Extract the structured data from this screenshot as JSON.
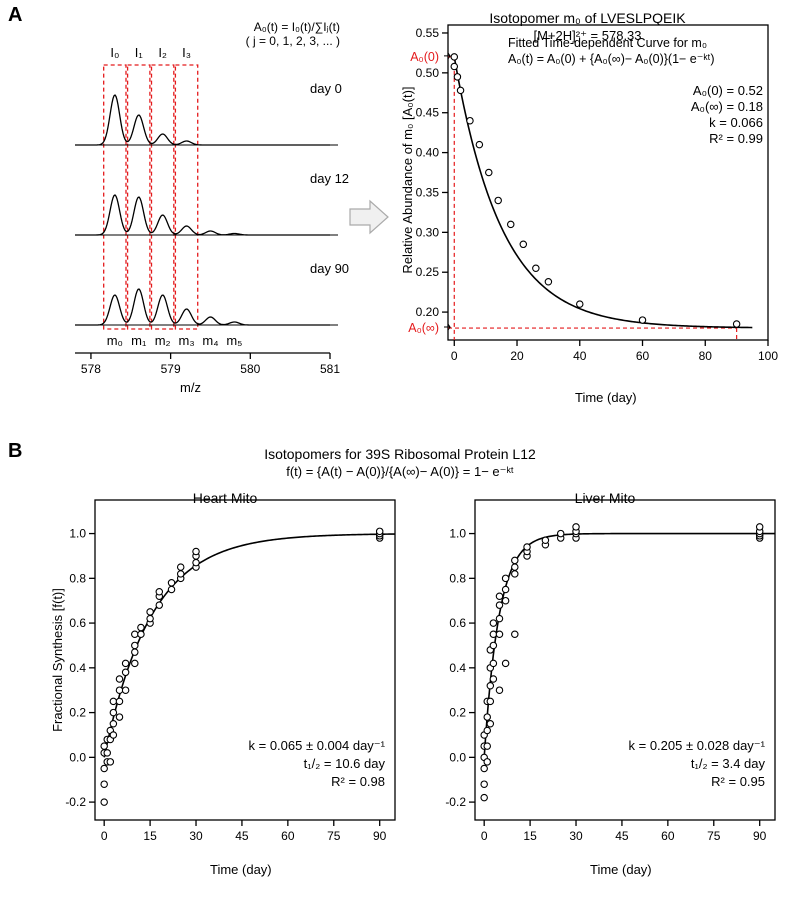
{
  "panelA": {
    "label": "A",
    "spectra": {
      "formula": "A₀(t) = I₀(t)/∑Iⱼ(t)",
      "formula_sub": "( j = 0, 1, 2, 3, ... )",
      "isotope_labels": [
        "I₀",
        "I₁",
        "I₂",
        "I₃"
      ],
      "day_labels": [
        "day 0",
        "day 12",
        "day 90"
      ],
      "m_labels": [
        "m₀",
        "m₁",
        "m₂",
        "m₃",
        "m₄",
        "m₅"
      ],
      "mz_values": [
        578.3,
        578.6,
        578.9,
        579.2,
        579.5,
        579.8
      ],
      "peak_heights": [
        [
          50,
          30,
          11,
          4,
          0,
          0
        ],
        [
          40,
          38,
          20,
          9,
          4,
          1.5
        ],
        [
          30,
          36,
          30,
          16,
          8,
          3
        ]
      ],
      "x_ticks": [
        578,
        579,
        580,
        581
      ],
      "x_axis_label": "m/z",
      "box_color": "#e41a1c",
      "stroke_color": "#000000",
      "x_lim": [
        577.8,
        581.0
      ]
    },
    "decay": {
      "title1": "Isotopomer m₀ of LVESLPQEIK",
      "title2": "[M+2H]²⁺ = 578.33",
      "fitted_line1": "Fitted Time-dependent Curve for m₀",
      "fitted_line2": "A₀(t) = A₀(0) + {A₀(∞)− A₀(0)}(1− e⁻ᵏᵗ)",
      "params": {
        "A0": "A₀(0) = 0.52",
        "Ainf": "A₀(∞) = 0.18",
        "k": "k = 0.066",
        "R2": "R² = 0.99"
      },
      "y_label": "Relative Abundance of m₀ [A₀(t)]",
      "x_label": "Time (day)",
      "x_ticks": [
        0,
        20,
        40,
        60,
        80,
        100
      ],
      "y_ticks": [
        0.2,
        0.25,
        0.3,
        0.35,
        0.4,
        0.45,
        0.5,
        0.55
      ],
      "x_lim": [
        -2,
        100
      ],
      "y_lim": [
        0.165,
        0.56
      ],
      "data_points": [
        [
          0,
          0.52
        ],
        [
          0,
          0.508
        ],
        [
          1,
          0.495
        ],
        [
          2,
          0.478
        ],
        [
          5,
          0.44
        ],
        [
          8,
          0.41
        ],
        [
          11,
          0.375
        ],
        [
          14,
          0.34
        ],
        [
          18,
          0.31
        ],
        [
          22,
          0.285
        ],
        [
          26,
          0.255
        ],
        [
          30,
          0.238
        ],
        [
          40,
          0.21
        ],
        [
          60,
          0.19
        ],
        [
          90,
          0.185
        ]
      ],
      "curve": {
        "A0": 0.52,
        "Ainf": 0.18,
        "k": 0.066
      },
      "annotation_A0": "A₀(0)",
      "annotation_Ainf": "A₀(∞)",
      "marker_color": "#000000",
      "marker_fill": "#ffffff",
      "dash_color": "#e41a1c"
    }
  },
  "panelB": {
    "label": "B",
    "title1": "Isotopomers for 39S Ribosomal Protein L12",
    "title2": "f(t) = {A(t) − A(0)}/{A(∞)− A(0)} = 1− e⁻ᵏᵗ",
    "y_label": "Fractional Synthesis [f(t)]",
    "x_label": "Time (day)",
    "x_ticks": [
      0,
      15,
      30,
      45,
      60,
      75,
      90
    ],
    "y_ticks": [
      -0.2,
      0.0,
      0.2,
      0.4,
      0.6,
      0.8,
      1.0
    ],
    "x_lim": [
      -3,
      95
    ],
    "y_lim": [
      -0.28,
      1.15
    ],
    "heart": {
      "title": "Heart Mito",
      "params": [
        "k = 0.065 ± 0.004 day⁻¹",
        "t₁/₂ = 10.6 day",
        "R² = 0.98"
      ],
      "curve_k": 0.065,
      "points": [
        [
          0,
          -0.2
        ],
        [
          0,
          -0.12
        ],
        [
          0,
          -0.05
        ],
        [
          0,
          0.02
        ],
        [
          0,
          0.05
        ],
        [
          1,
          0.02
        ],
        [
          1,
          -0.02
        ],
        [
          1,
          0.08
        ],
        [
          2,
          -0.02
        ],
        [
          2,
          0.08
        ],
        [
          2,
          0.12
        ],
        [
          3,
          0.1
        ],
        [
          3,
          0.15
        ],
        [
          3,
          0.2
        ],
        [
          3,
          0.25
        ],
        [
          5,
          0.18
        ],
        [
          5,
          0.25
        ],
        [
          5,
          0.3
        ],
        [
          5,
          0.35
        ],
        [
          7,
          0.3
        ],
        [
          7,
          0.38
        ],
        [
          7,
          0.42
        ],
        [
          10,
          0.42
        ],
        [
          10,
          0.47
        ],
        [
          10,
          0.5
        ],
        [
          10,
          0.55
        ],
        [
          12,
          0.55
        ],
        [
          12,
          0.58
        ],
        [
          15,
          0.6
        ],
        [
          15,
          0.62
        ],
        [
          15,
          0.65
        ],
        [
          18,
          0.68
        ],
        [
          18,
          0.72
        ],
        [
          18,
          0.74
        ],
        [
          22,
          0.75
        ],
        [
          22,
          0.78
        ],
        [
          25,
          0.8
        ],
        [
          25,
          0.82
        ],
        [
          25,
          0.85
        ],
        [
          30,
          0.85
        ],
        [
          30,
          0.87
        ],
        [
          30,
          0.9
        ],
        [
          30,
          0.92
        ],
        [
          90,
          0.98
        ],
        [
          90,
          0.99
        ],
        [
          90,
          1.0
        ],
        [
          90,
          1.01
        ]
      ]
    },
    "liver": {
      "title": "Liver Mito",
      "params": [
        "k = 0.205 ± 0.028 day⁻¹",
        "t₁/₂ = 3.4 day",
        "R² = 0.95"
      ],
      "curve_k": 0.205,
      "points": [
        [
          0,
          -0.18
        ],
        [
          0,
          -0.12
        ],
        [
          0,
          -0.05
        ],
        [
          0,
          0.0
        ],
        [
          0,
          0.05
        ],
        [
          0,
          0.1
        ],
        [
          1,
          -0.02
        ],
        [
          1,
          0.05
        ],
        [
          1,
          0.12
        ],
        [
          1,
          0.18
        ],
        [
          1,
          0.25
        ],
        [
          2,
          0.15
        ],
        [
          2,
          0.25
        ],
        [
          2,
          0.32
        ],
        [
          2,
          0.4
        ],
        [
          2,
          0.48
        ],
        [
          3,
          0.35
        ],
        [
          3,
          0.42
        ],
        [
          3,
          0.5
        ],
        [
          3,
          0.55
        ],
        [
          3,
          0.6
        ],
        [
          5,
          0.55
        ],
        [
          5,
          0.62
        ],
        [
          5,
          0.68
        ],
        [
          5,
          0.72
        ],
        [
          5,
          0.3
        ],
        [
          7,
          0.7
        ],
        [
          7,
          0.75
        ],
        [
          7,
          0.8
        ],
        [
          7,
          0.42
        ],
        [
          10,
          0.82
        ],
        [
          10,
          0.85
        ],
        [
          10,
          0.88
        ],
        [
          10,
          0.55
        ],
        [
          14,
          0.9
        ],
        [
          14,
          0.92
        ],
        [
          14,
          0.94
        ],
        [
          20,
          0.95
        ],
        [
          20,
          0.97
        ],
        [
          25,
          0.98
        ],
        [
          25,
          1.0
        ],
        [
          30,
          0.98
        ],
        [
          30,
          1.0
        ],
        [
          30,
          1.01
        ],
        [
          30,
          1.03
        ],
        [
          90,
          0.98
        ],
        [
          90,
          0.99
        ],
        [
          90,
          1.0
        ],
        [
          90,
          1.01
        ],
        [
          90,
          1.03
        ]
      ]
    }
  },
  "style": {
    "bg": "#ffffff",
    "fg": "#000000",
    "red": "#e41a1c",
    "font_main": 13,
    "font_title": 14,
    "font_tick": 12,
    "marker_radius": 3.2,
    "line_width": 1.3,
    "dash": "4,3"
  }
}
